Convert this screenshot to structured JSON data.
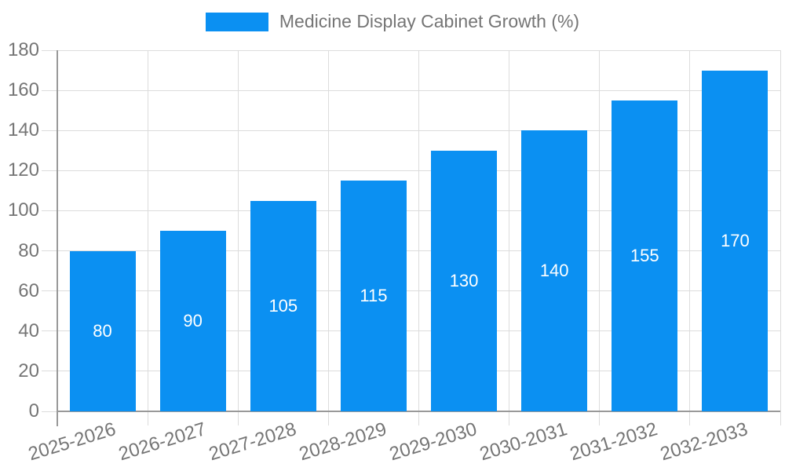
{
  "chart_data": {
    "type": "bar",
    "title": "Medicine Display Cabinet Growth (%)",
    "categories": [
      "2025-2026",
      "2026-2027",
      "2027-2028",
      "2028-2029",
      "2029-2030",
      "2030-2031",
      "2031-2032",
      "2032-2033"
    ],
    "values": [
      80,
      90,
      105,
      115,
      130,
      140,
      155,
      170
    ],
    "xlabel": "",
    "ylabel": "",
    "ylim": [
      0,
      180
    ],
    "ytick_step": 20,
    "yticks": [
      0,
      20,
      40,
      60,
      80,
      100,
      120,
      140,
      160,
      180
    ],
    "grid": true,
    "legend_position": "top",
    "x_label_rotation_deg": -17,
    "bar_width_fraction": 0.73,
    "colors": {
      "bar": "#0b90f2",
      "value_label": "#ffffff",
      "text": "#757575",
      "grid": "#dcdcdc",
      "axis": "#999999",
      "background": "#ffffff"
    }
  }
}
